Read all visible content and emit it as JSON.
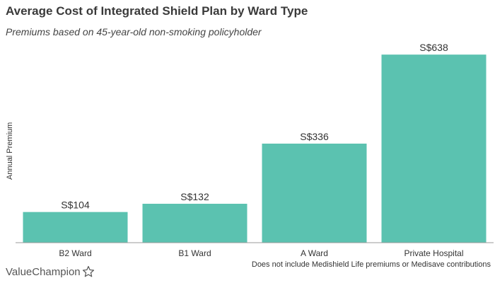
{
  "chart_data": {
    "type": "bar",
    "title": "Average Cost of Integrated Shield Plan by Ward Type",
    "subtitle": "Premiums based on 45-year-old non-smoking policyholder",
    "ylabel": "Annual Premium",
    "xlabel": "",
    "categories": [
      "B2 Ward",
      "B1 Ward",
      "A Ward",
      "Private Hospital"
    ],
    "values": [
      104,
      132,
      336,
      638
    ],
    "value_labels": [
      "S$104",
      "S$132",
      "S$336",
      "S$638"
    ],
    "ylim": [
      0,
      660
    ],
    "grid": false,
    "legend": "none",
    "bar_color": "#5bc2b0"
  },
  "footnote": "Does not include Medishield Life premiums or Medisave contributions",
  "brand": {
    "name": "ValueChampion",
    "icon": "star-outline-icon"
  }
}
